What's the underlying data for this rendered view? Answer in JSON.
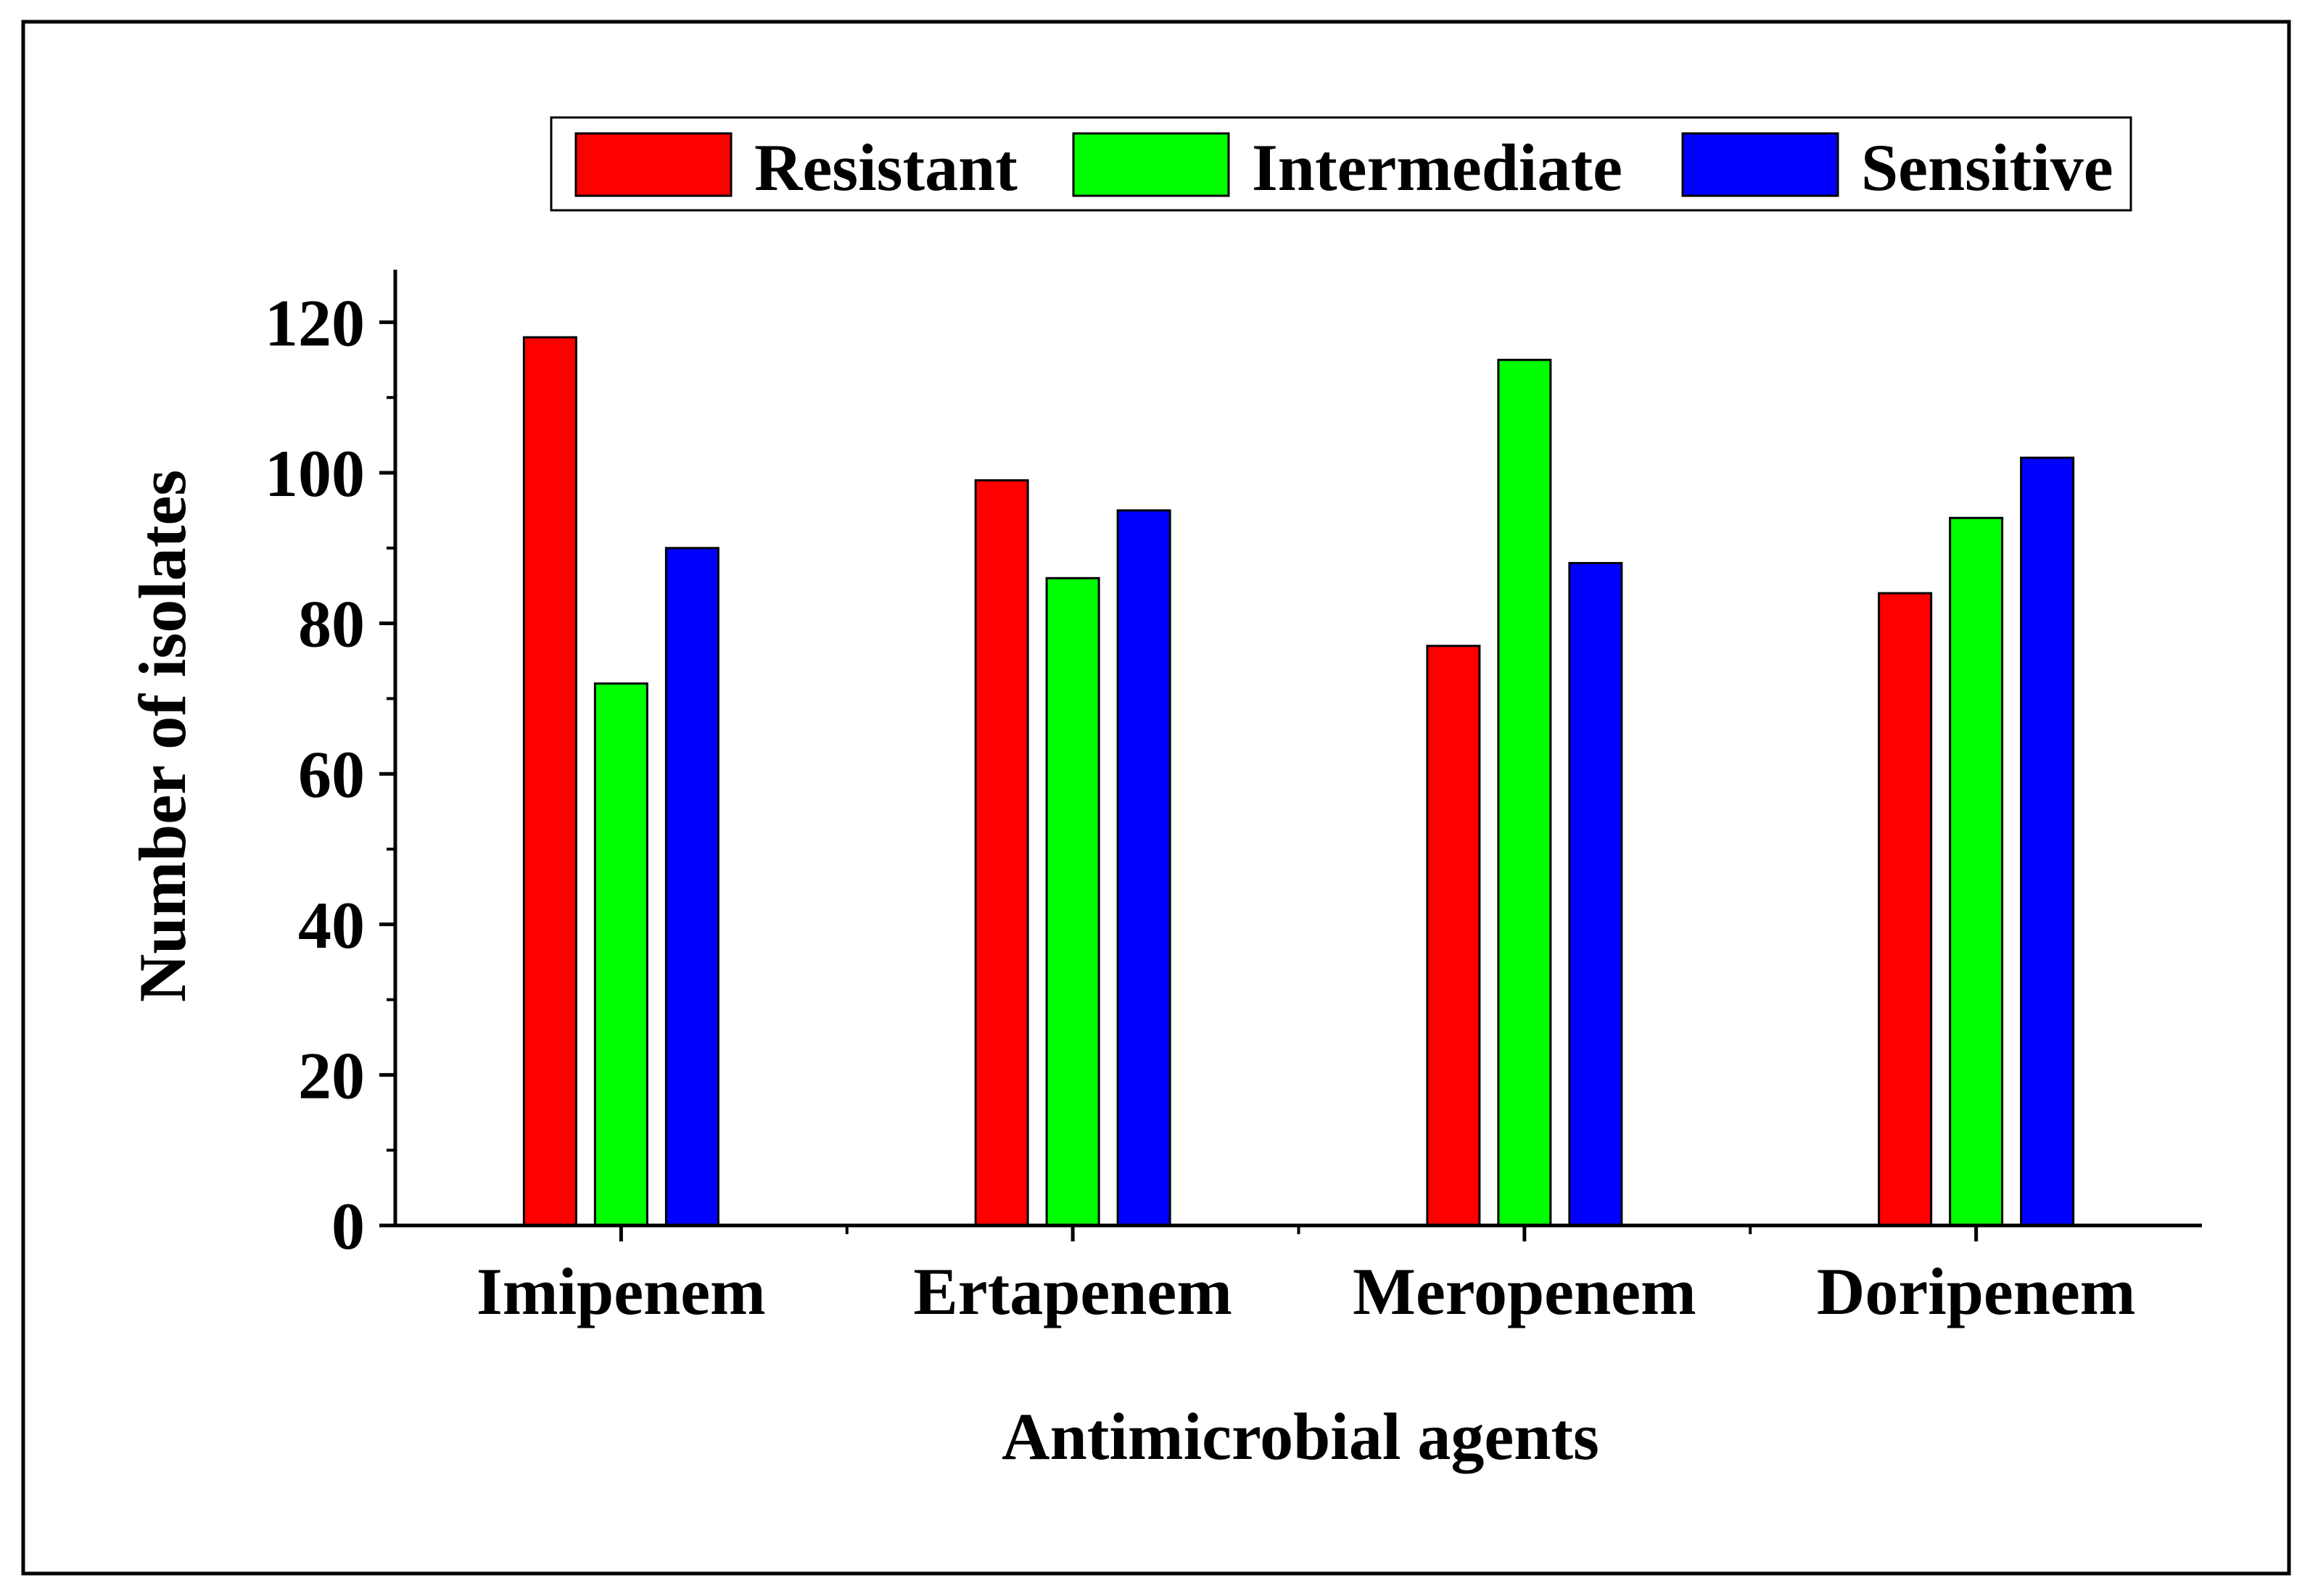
{
  "chart_data": {
    "type": "bar",
    "title": "",
    "xlabel": "Antimicrobial agents",
    "ylabel": "Number of isolates",
    "categories": [
      "Imipenem",
      "Ertapenem",
      "Meropenem",
      "Doripenem"
    ],
    "ylim": [
      0,
      127
    ],
    "yticks": [
      0,
      20,
      40,
      60,
      80,
      100,
      120
    ],
    "ytick_labels": [
      "0",
      "20",
      "40",
      "60",
      "80",
      "100",
      "120"
    ],
    "grid": false,
    "legend_position": "top",
    "series": [
      {
        "name": "Resistant",
        "color": "#ff0000",
        "values": [
          118,
          99,
          77,
          84
        ]
      },
      {
        "name": "Intermediate",
        "color": "#00ff00",
        "values": [
          72,
          86,
          115,
          94
        ]
      },
      {
        "name": "Sensitive",
        "color": "#0000ff",
        "values": [
          90,
          95,
          88,
          102
        ]
      }
    ]
  }
}
